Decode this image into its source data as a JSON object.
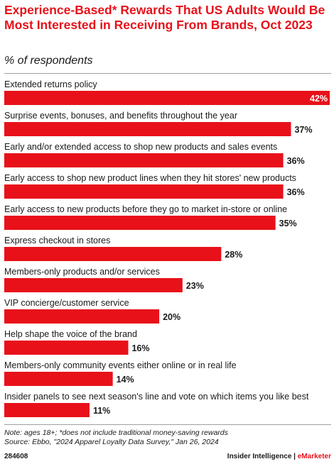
{
  "header": {
    "title": "Experience-Based* Rewards That US Adults Would Be Most Interested in Receiving From Brands, Oct 2023",
    "subtitle": "% of respondents"
  },
  "chart_data": {
    "type": "bar",
    "orientation": "horizontal",
    "categories": [
      "Extended returns policy",
      "Surprise events, bonuses, and benefits throughout the year",
      "Early and/or extended access to shop new products and sales events",
      "Early access to shop new product lines when they hit stores' new products",
      "Early access to new products before they go to market in-store or online",
      "Express checkout in stores",
      "Members-only products and/or services",
      "VIP concierge/customer service",
      "Help shape the voice of the brand",
      "Members-only community events either online or in real life",
      "Insider panels to see next season's line and vote on which items you like best"
    ],
    "values": [
      42,
      37,
      36,
      36,
      35,
      28,
      23,
      20,
      16,
      14,
      11
    ],
    "value_labels": [
      "42%",
      "37%",
      "36%",
      "36%",
      "35%",
      "28%",
      "23%",
      "20%",
      "16%",
      "14%",
      "11%"
    ],
    "xlim": [
      0,
      42
    ],
    "bar_color": "#e8111a",
    "grid": false,
    "legend": "none"
  },
  "footer": {
    "note": "Note: ages 18+; *does not include traditional money-saving rewards",
    "source": "Source: Ebbo, \"2024 Apparel Loyalty Data Survey,\" Jan 26, 2024",
    "chart_id": "284608",
    "brand_main": "Insider Intelligence | ",
    "brand_accent": "eMarketer"
  }
}
